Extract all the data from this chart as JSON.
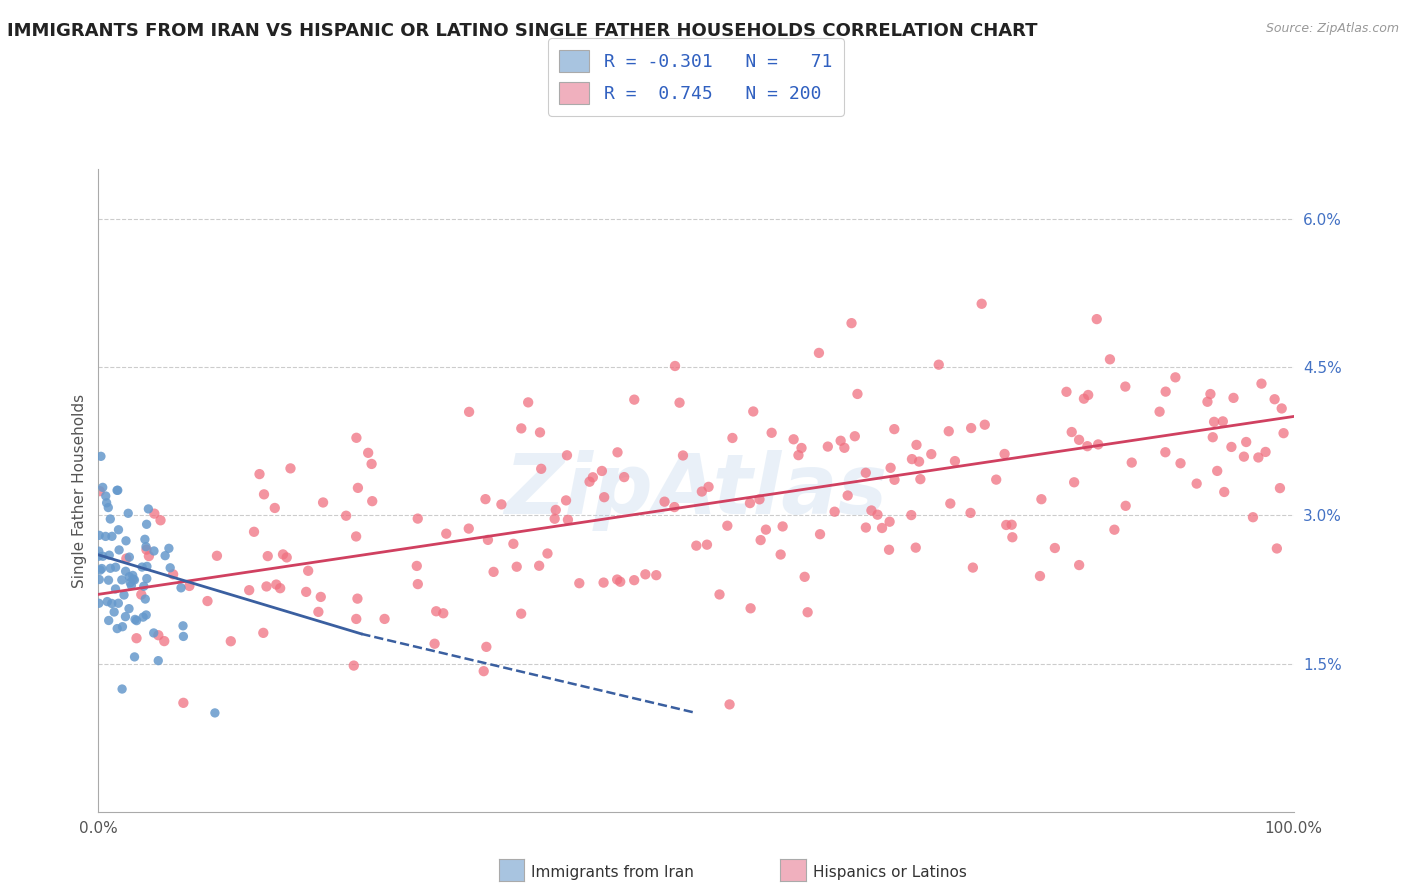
{
  "title": "IMMIGRANTS FROM IRAN VS HISPANIC OR LATINO SINGLE FATHER HOUSEHOLDS CORRELATION CHART",
  "source": "Source: ZipAtlas.com",
  "ylabel": "Single Father Households",
  "watermark": "ZipAtlas",
  "blue_R": -0.301,
  "blue_N": 71,
  "pink_R": 0.745,
  "pink_N": 200,
  "blue_color": "#a8c4e0",
  "pink_color": "#f0b0be",
  "blue_line_color": "#3a5fa0",
  "pink_line_color": "#d04060",
  "blue_scatter_color": "#6699cc",
  "pink_scatter_color": "#f07080",
  "yticks": [
    0.0,
    0.015,
    0.03,
    0.045,
    0.06
  ],
  "ytick_labels": [
    "",
    "1.5%",
    "3.0%",
    "4.5%",
    "6.0%"
  ],
  "xlim": [
    0.0,
    1.0
  ],
  "ylim": [
    0.0,
    0.065
  ],
  "blue_line_x0": 0.0,
  "blue_line_x_solid_end": 0.22,
  "blue_line_x_dashed_end": 0.5,
  "blue_line_y0": 0.026,
  "blue_line_y_solid_end": 0.018,
  "blue_line_y_dashed_end": 0.01,
  "pink_line_x0": 0.0,
  "pink_line_x1": 1.0,
  "pink_line_y0": 0.022,
  "pink_line_y1": 0.04,
  "background_color": "#ffffff",
  "grid_color": "#cccccc",
  "title_color": "#222222",
  "footer_blue_label": "Immigrants from Iran",
  "footer_pink_label": "Hispanics or Latinos"
}
